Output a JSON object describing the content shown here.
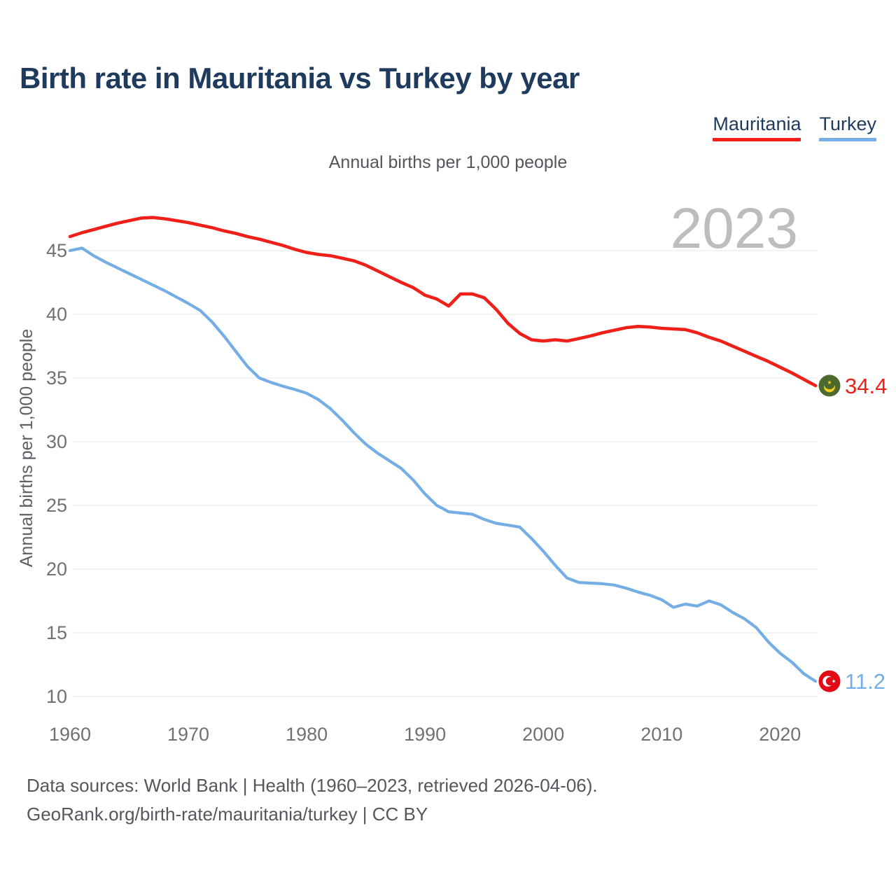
{
  "page": {
    "title": "Birth rate in Mauritania vs Turkey by year"
  },
  "legend": [
    {
      "label": "Mauritania",
      "color": "#ee2019"
    },
    {
      "label": "Turkey",
      "color": "#74aee5"
    }
  ],
  "subtitle": "Annual births per 1,000 people",
  "watermark": "2023",
  "footer": {
    "line1": "Data sources: World Bank | Health (1960–2023, retrieved 2026-04-06).",
    "line2": "GeoRank.org/birth-rate/mauritania/turkey | CC BY"
  },
  "chart_data": {
    "type": "line",
    "title": "Birth rate in Mauritania vs Turkey by year",
    "subtitle": "Annual births per 1,000 people",
    "xlabel": "",
    "ylabel": "Annual births per 1,000 people",
    "x_start_year": 1960,
    "x_end_year": 2023,
    "x_ticks": [
      1960,
      1970,
      1980,
      1990,
      2000,
      2010,
      2020
    ],
    "y_ticks": [
      10,
      15,
      20,
      25,
      30,
      35,
      40,
      45
    ],
    "ylim": [
      10,
      48
    ],
    "grid": true,
    "legend_position": "top-right",
    "watermark": "2023",
    "series": [
      {
        "name": "Mauritania",
        "color": "#ee2019",
        "end_label": "34.4",
        "flag": "mauritania",
        "flag_colors": {
          "field": "#4d6a2e",
          "emblem": "#f2cd20"
        },
        "values": [
          46.1,
          46.4,
          46.65,
          46.9,
          47.15,
          47.35,
          47.55,
          47.6,
          47.5,
          47.35,
          47.2,
          47.0,
          46.8,
          46.55,
          46.35,
          46.1,
          45.9,
          45.65,
          45.4,
          45.1,
          44.85,
          44.7,
          44.6,
          44.4,
          44.2,
          43.85,
          43.4,
          42.95,
          42.5,
          42.1,
          41.5,
          41.2,
          40.65,
          41.6,
          41.6,
          41.3,
          40.4,
          39.3,
          38.5,
          38.0,
          37.9,
          38.0,
          37.9,
          38.1,
          38.3,
          38.55,
          38.75,
          38.95,
          39.05,
          39.0,
          38.9,
          38.85,
          38.8,
          38.55,
          38.2,
          37.9,
          37.5,
          37.1,
          36.7,
          36.3,
          35.85,
          35.4,
          34.9,
          34.4
        ]
      },
      {
        "name": "Turkey",
        "color": "#74aee5",
        "end_label": "11.2",
        "flag": "turkey",
        "flag_colors": {
          "field": "#e30a17",
          "emblem": "#ffffff"
        },
        "values": [
          45.0,
          45.2,
          44.6,
          44.1,
          43.65,
          43.2,
          42.75,
          42.3,
          41.85,
          41.35,
          40.85,
          40.3,
          39.4,
          38.3,
          37.1,
          35.9,
          35.0,
          34.65,
          34.35,
          34.1,
          33.8,
          33.3,
          32.6,
          31.7,
          30.7,
          29.8,
          29.1,
          28.5,
          27.9,
          27.0,
          25.9,
          25.0,
          24.5,
          24.4,
          24.3,
          23.9,
          23.6,
          23.45,
          23.3,
          22.4,
          21.4,
          20.3,
          19.3,
          18.95,
          18.9,
          18.85,
          18.75,
          18.5,
          18.2,
          17.95,
          17.6,
          17.0,
          17.25,
          17.1,
          17.5,
          17.2,
          16.6,
          16.1,
          15.4,
          14.3,
          13.4,
          12.7,
          11.8,
          11.2
        ]
      }
    ],
    "colors": {
      "title": "#1e3a5c",
      "axis_text": "#717171",
      "gridline": "#ececec",
      "watermark": "#bdbdbd",
      "muted_text": "#54585d"
    }
  }
}
